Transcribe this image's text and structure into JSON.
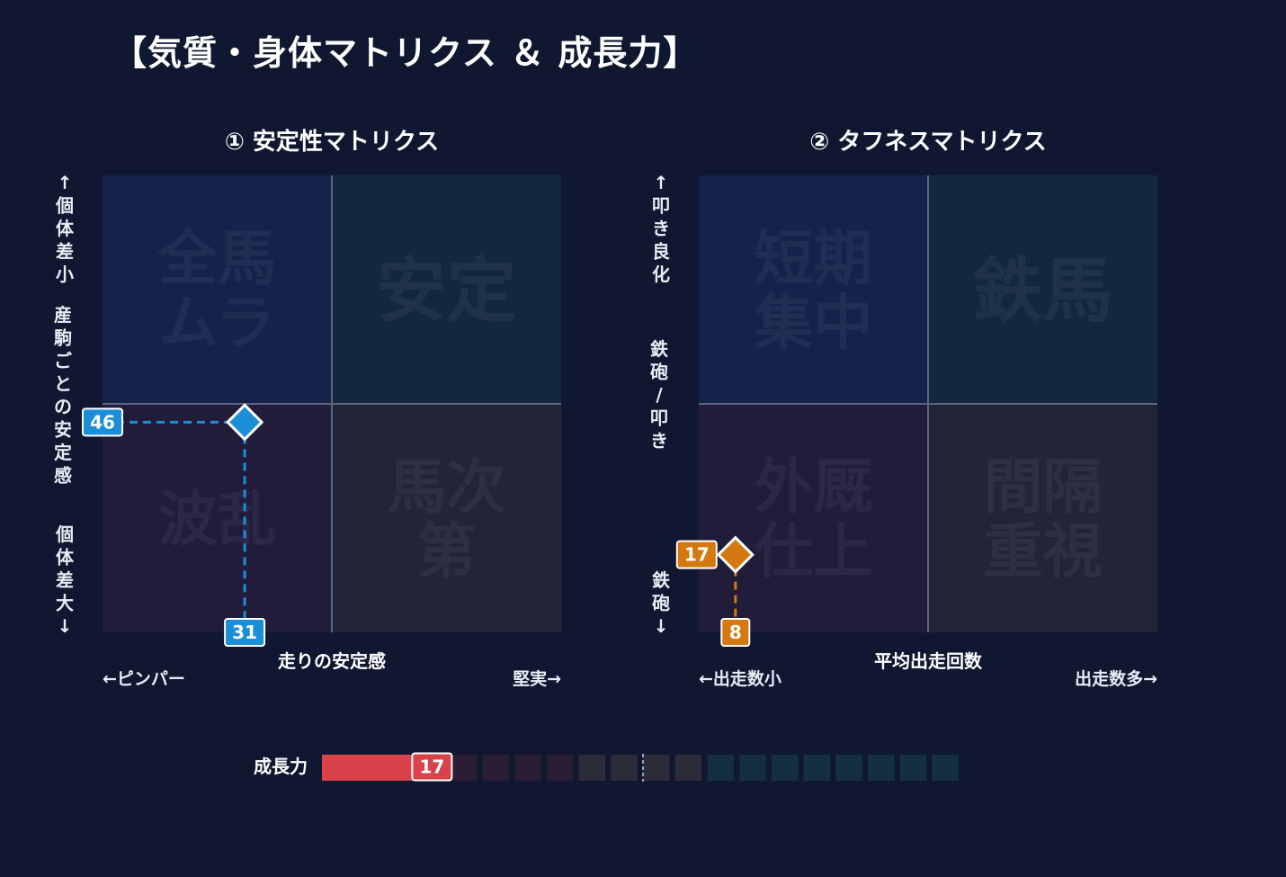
{
  "page_title": "【気質・身体マトリクス ＆ 成長力】",
  "chart_data": [
    {
      "type": "scatter",
      "title": "① 安定性マトリクス",
      "xlabel": "走りの安定感",
      "x_left_label": "←ピンパー",
      "x_right_label": "堅実→",
      "y_top_label": "↑個体差小",
      "y_mid_label": "産駒ごとの安定感",
      "y_bottom_label": "個体差大↓",
      "xlim": [
        0,
        100
      ],
      "ylim": [
        0,
        100
      ],
      "quadrants": {
        "top_left": "全馬ムラ",
        "top_right": "安定",
        "bottom_left": "波乱",
        "bottom_right": "馬次第"
      },
      "point": {
        "x": 31,
        "y": 46,
        "x_label": "31",
        "y_label": "46",
        "color": "#1a8fd8"
      },
      "quadrant_colors": [
        "#15234a",
        "#13283f",
        "#211c3a",
        "#212537"
      ]
    },
    {
      "type": "scatter",
      "title": "② タフネスマトリクス",
      "xlabel": "平均出走回数",
      "x_left_label": "←出走数小",
      "x_right_label": "出走数多→",
      "y_top_label": "↑叩き良化",
      "y_mid_label": "鉄砲/叩き",
      "y_bottom_label": "鉄砲↓",
      "xlim": [
        0,
        100
      ],
      "ylim": [
        0,
        100
      ],
      "quadrants": {
        "top_left": "短期集中",
        "top_right": "鉄馬",
        "bottom_left": "外厩仕上",
        "bottom_right": "間隔重視"
      },
      "point": {
        "x": 8,
        "y": 17,
        "x_label": "8",
        "y_label": "17",
        "color": "#d4780f"
      },
      "quadrant_colors": [
        "#15234a",
        "#13283f",
        "#211c3a",
        "#212537"
      ]
    },
    {
      "type": "bar",
      "label": "成長力",
      "value": 17,
      "value_label": "17",
      "max": 100,
      "color": "#d9424a",
      "segment_colors": [
        "#2a1d34",
        "#2a1d34",
        "#2a1d34",
        "#2a1d34",
        "#2c2c38",
        "#2c2c38",
        "#2c2c38",
        "#2c2c38",
        "#14303d",
        "#14303d",
        "#14303d",
        "#14303d",
        "#14303d",
        "#14303d",
        "#14303d",
        "#14303d"
      ]
    }
  ]
}
